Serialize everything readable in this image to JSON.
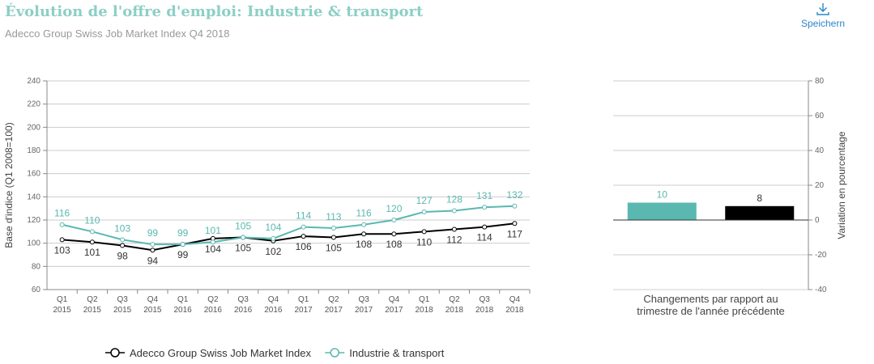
{
  "header": {
    "title": "Évolution de l'offre d'emploi: Industrie & transport",
    "subtitle": "Adecco Group Swiss Job Market Index Q4 2018",
    "save_label": "Speichern"
  },
  "colors": {
    "index": "#000000",
    "industry": "#5ab8b0",
    "grid": "#cccccc",
    "axis": "#888888"
  },
  "chart_data": [
    {
      "type": "line",
      "ylabel": "Base d'indice (Q1 2008=100)",
      "ylim": [
        60,
        240
      ],
      "yticks": [
        60,
        80,
        100,
        120,
        140,
        160,
        180,
        200,
        220,
        240
      ],
      "grid": true,
      "categories": [
        [
          "Q1",
          "2015"
        ],
        [
          "Q2",
          "2015"
        ],
        [
          "Q3",
          "2015"
        ],
        [
          "Q4",
          "2015"
        ],
        [
          "Q1",
          "2016"
        ],
        [
          "Q2",
          "2016"
        ],
        [
          "Q3",
          "2016"
        ],
        [
          "Q4",
          "2016"
        ],
        [
          "Q1",
          "2017"
        ],
        [
          "Q2",
          "2017"
        ],
        [
          "Q3",
          "2017"
        ],
        [
          "Q4",
          "2017"
        ],
        [
          "Q1",
          "2018"
        ],
        [
          "Q2",
          "2018"
        ],
        [
          "Q3",
          "2018"
        ],
        [
          "Q4",
          "2018"
        ]
      ],
      "series": [
        {
          "name": "Adecco Group Swiss Job Market Index",
          "key": "index",
          "values": [
            103,
            101,
            98,
            94,
            99,
            104,
            105,
            102,
            106,
            105,
            108,
            108,
            110,
            112,
            114,
            117
          ]
        },
        {
          "name": "Industrie & transport",
          "key": "industry",
          "values": [
            116,
            110,
            103,
            99,
            99,
            101,
            105,
            104,
            114,
            113,
            116,
            120,
            127,
            128,
            131,
            132
          ]
        }
      ],
      "legend": "bottom-center"
    },
    {
      "type": "bar",
      "xlabel": [
        "Changements par rapport au",
        "trimestre de l'année précédente"
      ],
      "ylabel": "Variation en pourcentage",
      "ylim": [
        -40,
        80
      ],
      "yticks": [
        -40,
        -20,
        0,
        20,
        40,
        60,
        80
      ],
      "series": [
        {
          "name": "Industrie & transport",
          "key": "industry",
          "value": 10
        },
        {
          "name": "Adecco Group Swiss Job Market Index",
          "key": "index",
          "value": 8
        }
      ]
    }
  ]
}
